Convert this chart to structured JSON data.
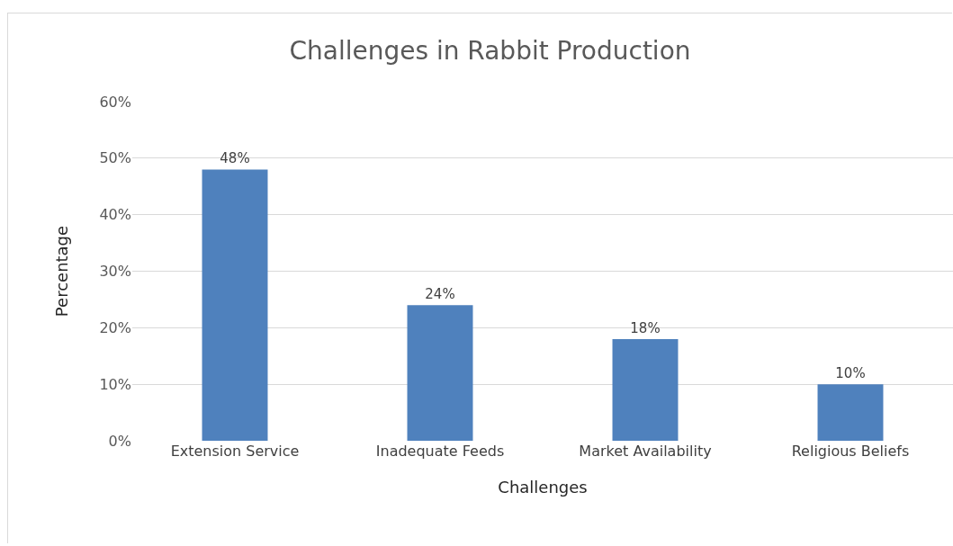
{
  "chart_data": {
    "type": "bar",
    "title": "Challenges in Rabbit Production",
    "xlabel": "Challenges",
    "ylabel": "Percentage",
    "categories": [
      "Extension Service",
      "Inadequate Feeds",
      "Market Availability",
      "Religious Beliefs"
    ],
    "values": [
      48,
      24,
      18,
      10
    ],
    "value_labels": [
      "48%",
      "24%",
      "18%",
      "10%"
    ],
    "color": "#4f81bd",
    "ylim": [
      0,
      60
    ],
    "yticks": [
      {
        "value": 0,
        "label": "0%"
      },
      {
        "value": 10,
        "label": "10%"
      },
      {
        "value": 20,
        "label": "20%"
      },
      {
        "value": 30,
        "label": "30%"
      },
      {
        "value": 40,
        "label": "40%"
      },
      {
        "value": 50,
        "label": "50%"
      },
      {
        "value": 60,
        "label": "60%"
      }
    ],
    "grid": "y"
  }
}
